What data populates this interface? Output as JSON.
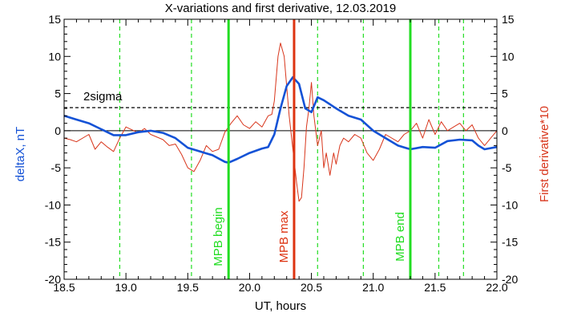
{
  "chart_data": {
    "type": "line",
    "title": "X-variations and first derivative, 12.03.2019",
    "xlabel": "UT, hours",
    "ylabel_left": "deltaX, nT",
    "ylabel_right": "First derivative*10",
    "xlim": [
      18.5,
      22.0
    ],
    "ylim": [
      -20,
      15
    ],
    "x_ticks": [
      "18.5",
      "19.0",
      "19.5",
      "20.0",
      "20.5",
      "21.0",
      "21.5",
      "22.0"
    ],
    "y_ticks": [
      "-20",
      "-15",
      "-10",
      "-5",
      "0",
      "5",
      "10",
      "15"
    ],
    "grid": false,
    "colors": {
      "deltaX": "#1452d6",
      "derivative": "#d8361c",
      "mpb_line": "#22dd22",
      "max_line": "#dd3311",
      "threshold": "#000000"
    },
    "threshold": {
      "label": "2sigma",
      "value": 3.1
    },
    "zero_line": 0,
    "dashed_vlines": [
      18.95,
      19.53,
      20.55,
      20.92,
      21.53,
      21.73
    ],
    "markers": [
      {
        "label": "MPB begin",
        "x": 19.83,
        "color": "#22dd22"
      },
      {
        "label": "MPB max",
        "x": 20.36,
        "color": "#dd3311"
      },
      {
        "label": "MPB end",
        "x": 21.3,
        "color": "#22dd22"
      }
    ],
    "series": [
      {
        "key": "deltaX",
        "x": [
          18.5,
          18.6,
          18.7,
          18.8,
          18.9,
          19.0,
          19.1,
          19.2,
          19.3,
          19.4,
          19.5,
          19.6,
          19.7,
          19.8,
          19.83,
          19.9,
          20.0,
          20.1,
          20.15,
          20.2,
          20.25,
          20.3,
          20.35,
          20.4,
          20.45,
          20.5,
          20.55,
          20.6,
          20.7,
          20.8,
          20.9,
          21.0,
          21.1,
          21.2,
          21.3,
          21.4,
          21.5,
          21.6,
          21.7,
          21.8,
          21.85,
          21.9,
          22.0
        ],
        "values": [
          2.0,
          1.5,
          1.0,
          0.2,
          -0.6,
          -0.6,
          -0.2,
          0.0,
          -0.3,
          -1.0,
          -2.3,
          -2.8,
          -3.3,
          -4.2,
          -4.3,
          -3.8,
          -3.0,
          -2.4,
          -2.2,
          -0.5,
          3.0,
          6.0,
          7.2,
          6.3,
          3.0,
          2.5,
          4.5,
          4.1,
          3.0,
          2.0,
          1.5,
          0.0,
          -1.0,
          -2.0,
          -2.5,
          -2.2,
          -2.3,
          -1.4,
          -1.2,
          -1.3,
          -2.0,
          -2.5,
          -2.2
        ]
      },
      {
        "key": "derivative",
        "x": [
          18.5,
          18.55,
          18.6,
          18.7,
          18.75,
          18.8,
          18.85,
          18.9,
          18.95,
          19.0,
          19.1,
          19.15,
          19.2,
          19.3,
          19.35,
          19.4,
          19.45,
          19.5,
          19.55,
          19.6,
          19.65,
          19.7,
          19.75,
          19.8,
          19.85,
          19.9,
          19.95,
          20.0,
          20.05,
          20.1,
          20.15,
          20.18,
          20.2,
          20.23,
          20.25,
          20.28,
          20.3,
          20.32,
          20.34,
          20.36,
          20.38,
          20.4,
          20.42,
          20.44,
          20.46,
          20.48,
          20.5,
          20.52,
          20.55,
          20.58,
          20.6,
          20.62,
          20.65,
          20.68,
          20.7,
          20.73,
          20.76,
          20.8,
          20.85,
          20.9,
          20.95,
          21.0,
          21.05,
          21.1,
          21.2,
          21.25,
          21.3,
          21.35,
          21.4,
          21.45,
          21.5,
          21.55,
          21.6,
          21.65,
          21.7,
          21.75,
          21.8,
          21.85,
          21.9,
          21.95,
          22.0
        ],
        "values": [
          -1.0,
          -1.2,
          -1.5,
          -0.5,
          -2.5,
          -1.5,
          -2.2,
          -2.8,
          -1.0,
          0.5,
          -0.3,
          0.3,
          -0.5,
          -1.2,
          -2.0,
          -1.8,
          -3.2,
          -5.0,
          -5.5,
          -4.0,
          -2.0,
          -2.8,
          -2.5,
          -0.2,
          1.0,
          2.0,
          0.8,
          0.3,
          1.2,
          0.5,
          2.0,
          2.2,
          4.0,
          10.0,
          11.8,
          10.0,
          6.0,
          2.0,
          -1.0,
          -4.0,
          -7.0,
          -9.5,
          -9.0,
          -5.0,
          0.5,
          3.0,
          6.5,
          2.0,
          -2.0,
          0.0,
          -5.0,
          -3.0,
          -6.0,
          -3.0,
          -4.5,
          -2.0,
          -1.0,
          -1.5,
          -0.5,
          -1.0,
          -3.0,
          -4.0,
          -2.5,
          -0.5,
          -1.5,
          -0.5,
          0.0,
          1.0,
          -1.0,
          1.5,
          -0.5,
          1.2,
          0.0,
          0.5,
          1.0,
          0.0,
          0.8,
          -1.0,
          -2.0,
          -1.0,
          0.0
        ]
      }
    ]
  }
}
